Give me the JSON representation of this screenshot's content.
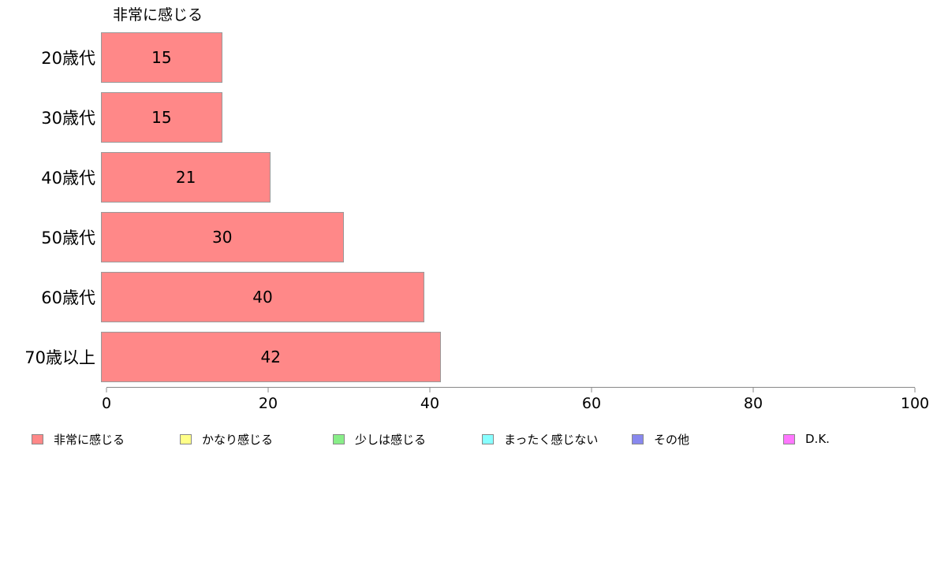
{
  "chart_data": {
    "type": "bar",
    "orientation": "horizontal",
    "title": "非常に感じる",
    "categories": [
      "20歳代",
      "30歳代",
      "40歳代",
      "50歳代",
      "60歳代",
      "70歳以上"
    ],
    "values": [
      15,
      15,
      21,
      30,
      40,
      42
    ],
    "xlim": [
      0,
      100
    ],
    "x_ticks": [
      0,
      20,
      40,
      60,
      80,
      100
    ],
    "x_tick_labels": [
      "0",
      "20",
      "40",
      "60",
      "80",
      "100"
    ],
    "grid": false,
    "bar_color": "#ff8888",
    "bar_border_color": "#999999",
    "value_labels_shown": true,
    "legend_position": "bottom",
    "legend": [
      {
        "label": "非常に感じる",
        "color": "#ff8888"
      },
      {
        "label": "かなり感じる",
        "color": "#ffff88"
      },
      {
        "label": "少しは感じる",
        "color": "#88ee88"
      },
      {
        "label": "まったく感じない",
        "color": "#88ffff"
      },
      {
        "label": "その他",
        "color": "#8888ee"
      },
      {
        "label": "D.K.",
        "color": "#ff77ff"
      }
    ]
  }
}
